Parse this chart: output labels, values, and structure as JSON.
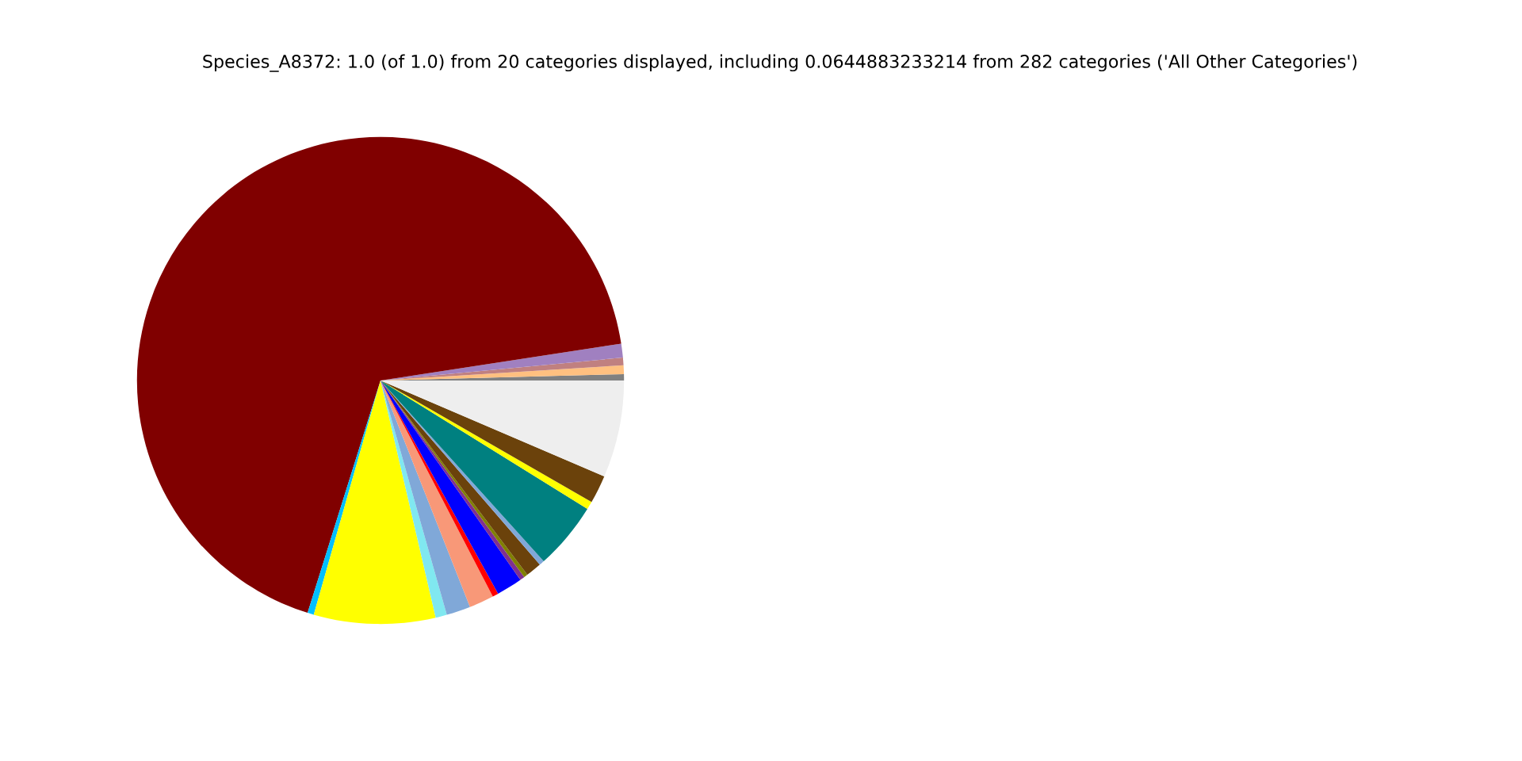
{
  "chart_data": {
    "type": "pie",
    "title": "Species_A8372: 1.0 (of 1.0) from 20 categories displayed, including 0.0644883233214 from 282 categories ('All Other Categories')",
    "categories": [
      null,
      null,
      null,
      null,
      null,
      null,
      null,
      null,
      null,
      null,
      null,
      null,
      null,
      null,
      null,
      null,
      null,
      null,
      null,
      null
    ],
    "values": [
      0.42,
      0.58,
      0.5,
      0.92,
      67.74,
      0.42,
      8.06,
      0.75,
      1.6,
      1.64,
      0.39,
      1.72,
      0.31,
      0.25,
      1.05,
      0.34,
      4.47,
      0.53,
      1.86,
      6.45
    ],
    "colors": [
      "#808080",
      "#ffc080",
      "#c08080",
      "#a080c0",
      "#800000",
      "#00bfff",
      "#ffff00",
      "#80e8f0",
      "#80a8d8",
      "#f89878",
      "#ff0000",
      "#0000ff",
      "#803090",
      "#808000",
      "#6b420b",
      "#80a8d8",
      "#008080",
      "#ffff00",
      "#6b420b",
      "#eeeeee"
    ],
    "legend": false
  }
}
